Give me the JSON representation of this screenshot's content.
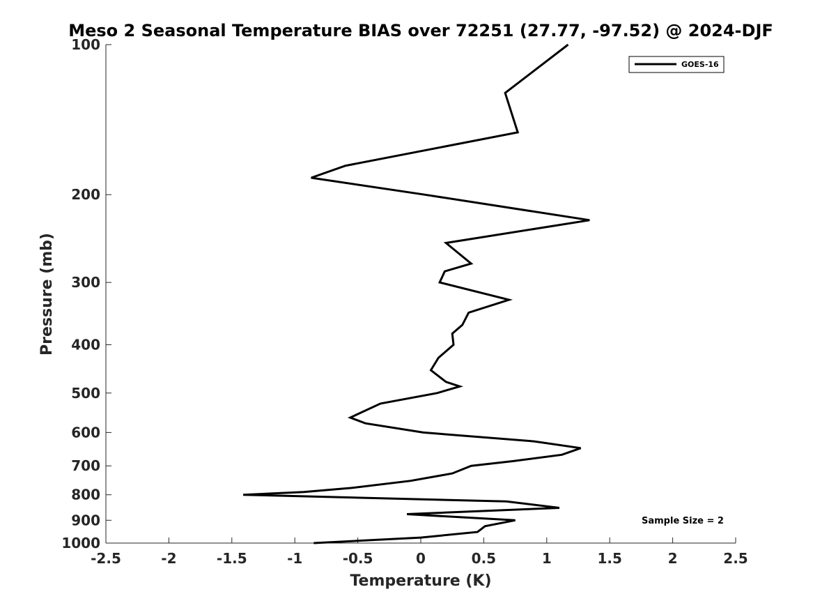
{
  "chart_data": {
    "type": "line",
    "title": "Meso 2 Seasonal Temperature BIAS over 72251 (27.77, -97.52) @ 2024-DJF",
    "xlabel": "Temperature (K)",
    "ylabel": "Pressure (mb)",
    "xlim": [
      -2.5,
      2.5
    ],
    "ylim": [
      100,
      1000
    ],
    "y_scale": "log",
    "y_reversed": true,
    "xticks": [
      -2.5,
      -2,
      -1.5,
      -1,
      -0.5,
      0,
      0.5,
      1,
      1.5,
      2,
      2.5
    ],
    "xtick_labels": [
      "-2.5",
      "-2",
      "-1.5",
      "-1",
      "-0.5",
      "0",
      "0.5",
      "1",
      "1.5",
      "2",
      "2.5"
    ],
    "yticks": [
      100,
      200,
      300,
      400,
      500,
      600,
      700,
      800,
      900,
      1000
    ],
    "ytick_labels": [
      "100",
      "200",
      "300",
      "400",
      "500",
      "600",
      "700",
      "800",
      "900",
      "1000"
    ],
    "grid": false,
    "legend_position": "top-right",
    "series": [
      {
        "name": "GOES-16",
        "color": "#000000",
        "points": [
          {
            "x": 1.17,
            "y": 100
          },
          {
            "x": 0.67,
            "y": 125
          },
          {
            "x": 0.77,
            "y": 150
          },
          {
            "x": -0.6,
            "y": 175
          },
          {
            "x": -0.87,
            "y": 185
          },
          {
            "x": 0.03,
            "y": 200
          },
          {
            "x": 1.34,
            "y": 225
          },
          {
            "x": 0.2,
            "y": 250
          },
          {
            "x": 0.4,
            "y": 275
          },
          {
            "x": 0.19,
            "y": 285
          },
          {
            "x": 0.15,
            "y": 300
          },
          {
            "x": 0.7,
            "y": 325
          },
          {
            "x": 0.38,
            "y": 345
          },
          {
            "x": 0.33,
            "y": 365
          },
          {
            "x": 0.25,
            "y": 380
          },
          {
            "x": 0.26,
            "y": 400
          },
          {
            "x": 0.14,
            "y": 425
          },
          {
            "x": 0.08,
            "y": 450
          },
          {
            "x": 0.2,
            "y": 475
          },
          {
            "x": 0.31,
            "y": 485
          },
          {
            "x": 0.13,
            "y": 500
          },
          {
            "x": -0.32,
            "y": 525
          },
          {
            "x": -0.56,
            "y": 560
          },
          {
            "x": -0.44,
            "y": 575
          },
          {
            "x": 0.02,
            "y": 600
          },
          {
            "x": 0.9,
            "y": 625
          },
          {
            "x": 1.27,
            "y": 645
          },
          {
            "x": 1.12,
            "y": 665
          },
          {
            "x": 0.73,
            "y": 685
          },
          {
            "x": 0.4,
            "y": 700
          },
          {
            "x": 0.25,
            "y": 725
          },
          {
            "x": -0.08,
            "y": 750
          },
          {
            "x": -0.55,
            "y": 775
          },
          {
            "x": -0.93,
            "y": 790
          },
          {
            "x": -1.41,
            "y": 800
          },
          {
            "x": 0.68,
            "y": 825
          },
          {
            "x": 1.1,
            "y": 850
          },
          {
            "x": -0.11,
            "y": 875
          },
          {
            "x": 0.75,
            "y": 900
          },
          {
            "x": 0.51,
            "y": 925
          },
          {
            "x": 0.45,
            "y": 950
          },
          {
            "x": 0.0,
            "y": 975
          },
          {
            "x": -0.85,
            "y": 1000
          }
        ]
      }
    ],
    "annotations": [
      {
        "text": "Sample Size = 2"
      }
    ]
  }
}
